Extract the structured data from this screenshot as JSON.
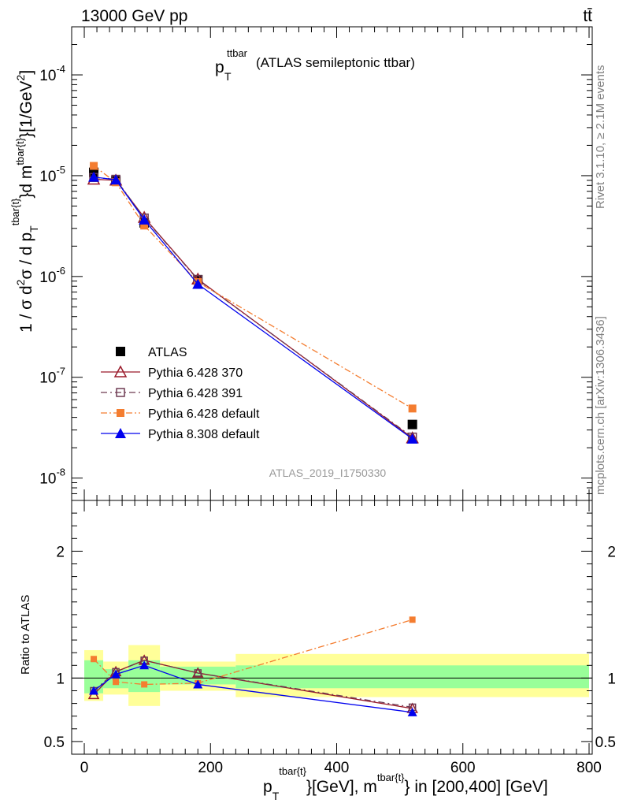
{
  "header": {
    "energy": "13000 GeV pp",
    "process": "tt̄"
  },
  "title": {
    "main": "p",
    "sub": "T",
    "sup": "ttbar",
    "rest": "(ATLAS semileptonic ttbar)"
  },
  "side": {
    "rivet": "Rivet 3.1.10, ≥ 2.1M events",
    "mcplots": "mcplots.cern.ch [arXiv:1306.3436]"
  },
  "analysis_id": "ATLAS_2019_I1750330",
  "labels": {
    "ylabel_main": "1 / σ d²σ / d p_T^{tbar{t}}d m^{tbar{t}} [1/GeV²]",
    "ylabel_ratio": "Ratio to ATLAS",
    "xlabel": "p_T^{tbar{t}} [GeV], m^{tbar{t}} in [200,400] [GeV]"
  },
  "colors": {
    "atlas": "#000000",
    "p370": "#9a1a2a",
    "p391": "#6e3a52",
    "p6def": "#f47d30",
    "p8def": "#0000ee",
    "band_inner": "#99ff99",
    "band_outer": "#ffff99"
  },
  "chart_data": [
    {
      "type": "scatter",
      "panel": "main",
      "ylog": true,
      "xlim": [
        -20,
        805
      ],
      "ylim": [
        6e-09,
        0.0003
      ],
      "x_bins": [
        [
          0,
          30
        ],
        [
          30,
          70
        ],
        [
          70,
          120
        ],
        [
          120,
          240
        ],
        [
          240,
          800
        ]
      ],
      "x": [
        15,
        50,
        95,
        180,
        520
      ],
      "xticks": [
        0,
        200,
        400,
        600,
        800
      ],
      "yticks": [
        "10^{-8}",
        "10^{-7}",
        "10^{-6}",
        "10^{-5}",
        "10^{-4}"
      ],
      "legend_position": "lower-left",
      "series": [
        {
          "name": "ATLAS",
          "marker": "square",
          "values": [
            1.08e-05,
            8.9e-06,
            3.4e-06,
            9.3e-07,
            3.4e-08
          ]
        },
        {
          "name": "Pythia 6.428 370",
          "marker": "open-triangle",
          "values": [
            9.2e-06,
            9e-06,
            3.85e-06,
            9.4e-07,
            2.5e-08
          ]
        },
        {
          "name": "Pythia 6.428 391",
          "marker": "open-square",
          "values": [
            9.6e-06,
            9.2e-06,
            3.8e-06,
            9.3e-07,
            2.55e-08
          ]
        },
        {
          "name": "Pythia 6.428 default",
          "marker": "filled-square",
          "values": [
            1.25e-05,
            8.6e-06,
            3.2e-06,
            8.8e-07,
            4.9e-08
          ]
        },
        {
          "name": "Pythia 8.308 default",
          "marker": "filled-triangle",
          "values": [
            9.7e-06,
            9.1e-06,
            3.65e-06,
            8.4e-07,
            2.45e-08
          ]
        }
      ]
    },
    {
      "type": "scatter",
      "panel": "ratio",
      "xlim": [
        -20,
        805
      ],
      "ylim": [
        0.4,
        2.4
      ],
      "yticks": [
        "0.5",
        "1",
        "2"
      ],
      "x": [
        15,
        50,
        95,
        180,
        520
      ],
      "bands": {
        "inner": [
          [
            0.88,
            1.14
          ],
          [
            0.92,
            1.07
          ],
          [
            0.89,
            1.14
          ],
          [
            0.95,
            1.09
          ],
          [
            0.92,
            1.1
          ]
        ],
        "outer": [
          [
            0.82,
            1.22
          ],
          [
            0.87,
            1.13
          ],
          [
            0.78,
            1.26
          ],
          [
            0.9,
            1.13
          ],
          [
            0.85,
            1.19
          ]
        ]
      },
      "series": [
        {
          "name": "Pythia 6.428 370",
          "values": [
            0.87,
            1.05,
            1.14,
            1.04,
            0.76
          ]
        },
        {
          "name": "Pythia 6.428 391",
          "values": [
            0.9,
            1.05,
            1.14,
            1.04,
            0.77
          ]
        },
        {
          "name": "Pythia 6.428 default",
          "values": [
            1.15,
            0.97,
            0.95,
            0.96,
            1.46
          ]
        },
        {
          "name": "Pythia 8.308 default",
          "values": [
            0.9,
            1.03,
            1.1,
            0.95,
            0.73
          ]
        }
      ]
    }
  ]
}
